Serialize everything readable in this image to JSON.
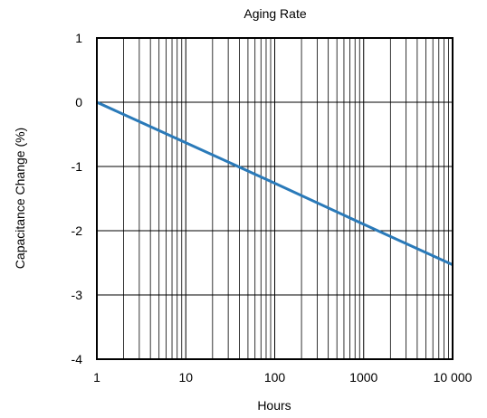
{
  "chart_data": {
    "type": "line",
    "title": "Aging Rate",
    "xlabel": "Hours",
    "ylabel": "Capacitance Change (%)",
    "x_scale": "log",
    "xlim": [
      1,
      10000
    ],
    "ylim": [
      -4,
      1
    ],
    "x_ticks": [
      {
        "value": 1,
        "label": "1"
      },
      {
        "value": 10,
        "label": "10"
      },
      {
        "value": 100,
        "label": "100"
      },
      {
        "value": 1000,
        "label": "1000"
      },
      {
        "value": 10000,
        "label": "10 000"
      }
    ],
    "y_ticks": [
      {
        "value": 1,
        "label": "1"
      },
      {
        "value": 0,
        "label": "0"
      },
      {
        "value": -1,
        "label": "-1"
      },
      {
        "value": -2,
        "label": "-2"
      },
      {
        "value": -3,
        "label": "-3"
      },
      {
        "value": -4,
        "label": "-4"
      }
    ],
    "grid": true,
    "series": [
      {
        "color": "#2a7ab9",
        "x": [
          1,
          10,
          100,
          1000,
          10000
        ],
        "y": [
          0,
          -0.63,
          -1.26,
          -1.9,
          -2.53
        ]
      }
    ]
  }
}
